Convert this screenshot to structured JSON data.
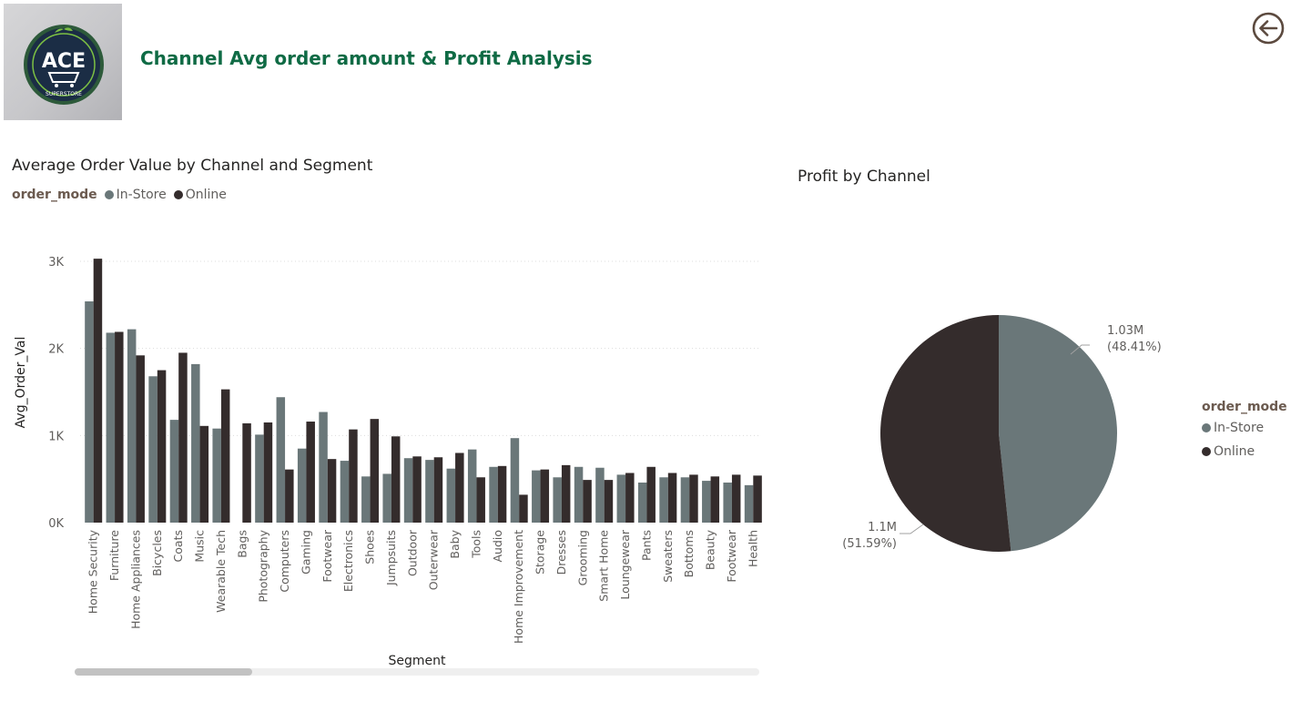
{
  "header": {
    "title": "Channel Avg order amount & Profit Analysis",
    "logo": {
      "main": "ACE",
      "sub": "SUPERSTORE"
    },
    "back_icon": "arrow-left-circle-icon"
  },
  "colors": {
    "in_store": "#6a7779",
    "online": "#342c2c",
    "title_green": "#0f6b45",
    "legend_title": "#6b5a4f"
  },
  "bar_visual": {
    "title": "Average Order Value by Channel and Segment",
    "legend_title": "order_mode",
    "legend": [
      "In-Store",
      "Online"
    ]
  },
  "pie_visual": {
    "title": "Profit by Channel",
    "legend_title": "order_mode",
    "legend": [
      "In-Store",
      "Online"
    ],
    "labels": [
      {
        "value": "1.03M",
        "pct": "(48.41%)"
      },
      {
        "value": "1.1M",
        "pct": "(51.59%)"
      }
    ]
  },
  "chart_data": [
    {
      "type": "bar",
      "title": "Average Order Value by Channel and Segment",
      "xlabel": "Segment",
      "ylabel": "Avg_Order_Val",
      "ylim": [
        0,
        3000
      ],
      "yticks": [
        0,
        1000,
        2000,
        3000
      ],
      "ytick_labels": [
        "0K",
        "1K",
        "2K",
        "3K"
      ],
      "grid": true,
      "legend_position": "top-left",
      "categories": [
        "Home Security",
        "Furniture",
        "Home Appliances",
        "Bicycles",
        "Coats",
        "Music",
        "Wearable Tech",
        "Bags",
        "Photography",
        "Computers",
        "Gaming",
        "Footwear",
        "Electronics",
        "Shoes",
        "Jumpsuits",
        "Outdoor",
        "Outerwear",
        "Baby",
        "Tools",
        "Audio",
        "Home Improvement",
        "Storage",
        "Dresses",
        "Grooming",
        "Smart Home",
        "Loungewear",
        "Pants",
        "Sweaters",
        "Bottoms",
        "Beauty",
        "Footwear",
        "Health"
      ],
      "series": [
        {
          "name": "In-Store",
          "values": [
            2540,
            2180,
            2220,
            1680,
            1180,
            1820,
            1080,
            0,
            1010,
            1440,
            850,
            1270,
            710,
            530,
            560,
            740,
            720,
            620,
            840,
            640,
            970,
            600,
            520,
            640,
            630,
            550,
            460,
            520,
            520,
            480,
            460,
            430
          ]
        },
        {
          "name": "Online",
          "values": [
            3030,
            2190,
            1920,
            1750,
            1950,
            1110,
            1530,
            1140,
            1150,
            610,
            1160,
            730,
            1070,
            1190,
            990,
            760,
            750,
            800,
            520,
            650,
            320,
            610,
            660,
            490,
            490,
            570,
            640,
            570,
            550,
            530,
            550,
            540
          ]
        }
      ]
    },
    {
      "type": "pie",
      "title": "Profit by Channel",
      "legend_position": "right",
      "categories": [
        "In-Store",
        "Online"
      ],
      "values": [
        1.03,
        1.1
      ],
      "value_labels": [
        "1.03M",
        "1.1M"
      ],
      "percentages": [
        48.41,
        51.59
      ]
    }
  ]
}
